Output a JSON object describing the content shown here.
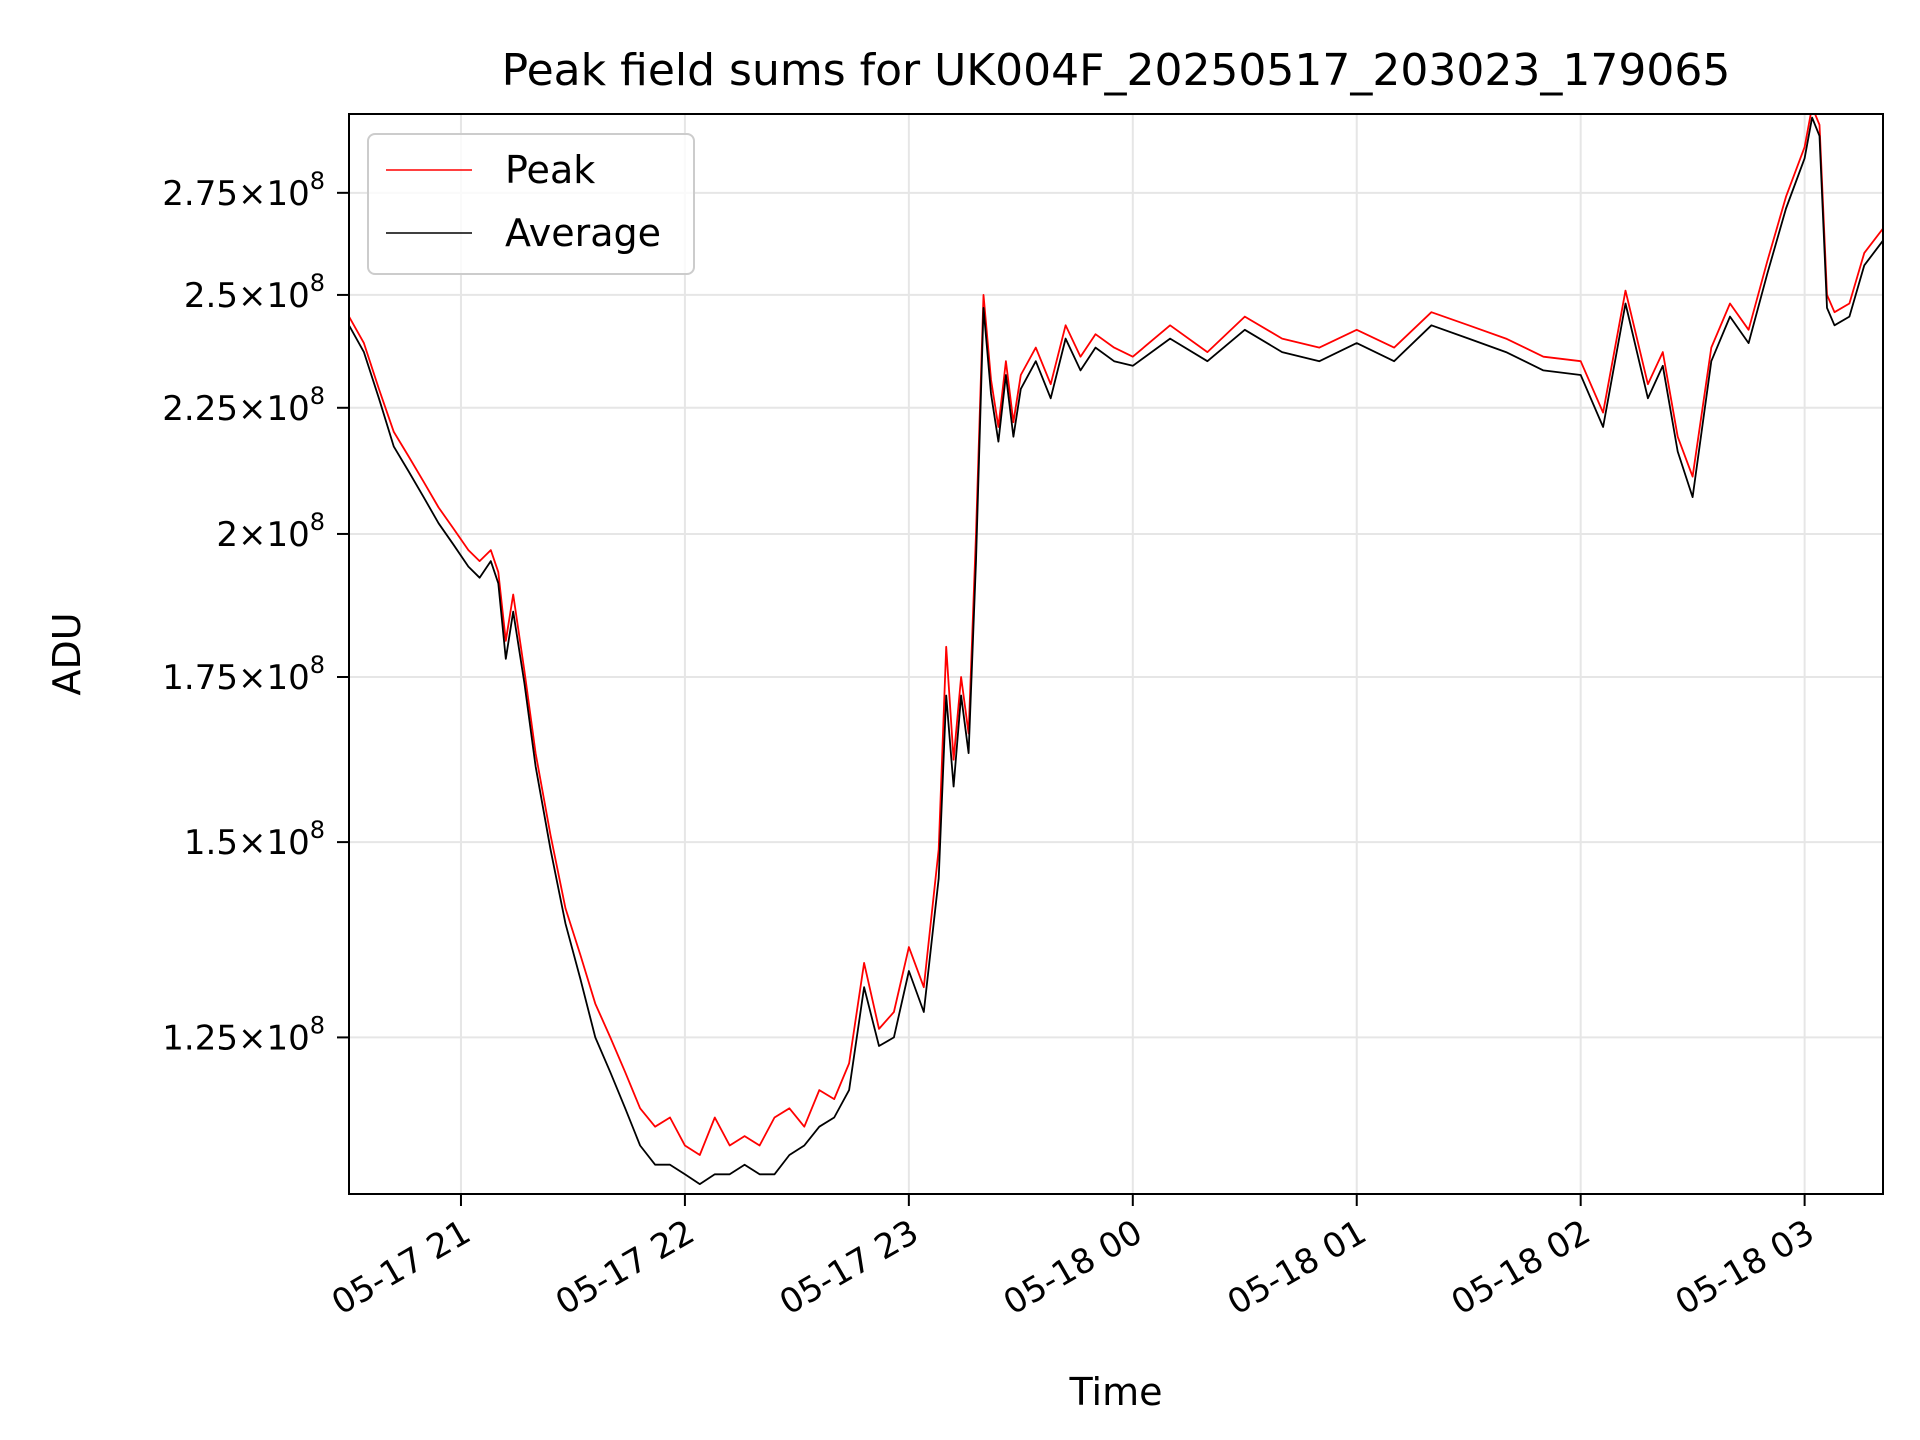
{
  "chart_data": {
    "type": "line",
    "title": "Peak field sums for UK004F_20250517_203023_179065",
    "xlabel": "Time",
    "ylabel": "ADU",
    "x_type": "datetime",
    "xlim": [
      "2025-05-17T20:30",
      "2025-05-18T03:21"
    ],
    "ylim": [
      108000000,
      296000000
    ],
    "y_scale": "log",
    "grid": true,
    "legend_position": "top-left",
    "x_ticks": [
      {
        "value": "2025-05-17T21:00",
        "label": "05-17 21"
      },
      {
        "value": "2025-05-17T22:00",
        "label": "05-17 22"
      },
      {
        "value": "2025-05-17T23:00",
        "label": "05-17 23"
      },
      {
        "value": "2025-05-18T00:00",
        "label": "05-18 00"
      },
      {
        "value": "2025-05-18T01:00",
        "label": "05-18 01"
      },
      {
        "value": "2025-05-18T02:00",
        "label": "05-18 02"
      },
      {
        "value": "2025-05-18T03:00",
        "label": "05-18 03"
      }
    ],
    "y_ticks": [
      {
        "value": 125000000,
        "mantissa": "1.25",
        "exponent": "8"
      },
      {
        "value": 150000000,
        "mantissa": "1.5",
        "exponent": "8"
      },
      {
        "value": 175000000,
        "mantissa": "1.75",
        "exponent": "8"
      },
      {
        "value": 200000000,
        "mantissa": "2",
        "exponent": "8"
      },
      {
        "value": 225000000,
        "mantissa": "2.25",
        "exponent": "8"
      },
      {
        "value": 250000000,
        "mantissa": "2.5",
        "exponent": "8"
      },
      {
        "value": 275000000,
        "mantissa": "2.75",
        "exponent": "8"
      }
    ],
    "series": [
      {
        "name": "Peak",
        "color": "#ff0000",
        "x": [
          "2025-05-17T20:30",
          "2025-05-17T20:34",
          "2025-05-17T20:38",
          "2025-05-17T20:42",
          "2025-05-17T20:46",
          "2025-05-17T20:50",
          "2025-05-17T20:54",
          "2025-05-17T20:58",
          "2025-05-17T21:02",
          "2025-05-17T21:05",
          "2025-05-17T21:08",
          "2025-05-17T21:10",
          "2025-05-17T21:12",
          "2025-05-17T21:14",
          "2025-05-17T21:17",
          "2025-05-17T21:20",
          "2025-05-17T21:24",
          "2025-05-17T21:28",
          "2025-05-17T21:32",
          "2025-05-17T21:36",
          "2025-05-17T21:40",
          "2025-05-17T21:44",
          "2025-05-17T21:48",
          "2025-05-17T21:52",
          "2025-05-17T21:56",
          "2025-05-17T22:00",
          "2025-05-17T22:04",
          "2025-05-17T22:08",
          "2025-05-17T22:12",
          "2025-05-17T22:16",
          "2025-05-17T22:20",
          "2025-05-17T22:24",
          "2025-05-17T22:28",
          "2025-05-17T22:32",
          "2025-05-17T22:36",
          "2025-05-17T22:40",
          "2025-05-17T22:44",
          "2025-05-17T22:48",
          "2025-05-17T22:52",
          "2025-05-17T22:56",
          "2025-05-17T23:00",
          "2025-05-17T23:04",
          "2025-05-17T23:08",
          "2025-05-17T23:10",
          "2025-05-17T23:12",
          "2025-05-17T23:14",
          "2025-05-17T23:16",
          "2025-05-17T23:18",
          "2025-05-17T23:20",
          "2025-05-17T23:22",
          "2025-05-17T23:24",
          "2025-05-17T23:26",
          "2025-05-17T23:28",
          "2025-05-17T23:30",
          "2025-05-17T23:34",
          "2025-05-17T23:38",
          "2025-05-17T23:42",
          "2025-05-17T23:46",
          "2025-05-17T23:50",
          "2025-05-17T23:55",
          "2025-05-18T00:00",
          "2025-05-18T00:10",
          "2025-05-18T00:20",
          "2025-05-18T00:30",
          "2025-05-18T00:40",
          "2025-05-18T00:50",
          "2025-05-18T01:00",
          "2025-05-18T01:10",
          "2025-05-18T01:20",
          "2025-05-18T01:30",
          "2025-05-18T01:40",
          "2025-05-18T01:50",
          "2025-05-18T02:00",
          "2025-05-18T02:06",
          "2025-05-18T02:12",
          "2025-05-18T02:18",
          "2025-05-18T02:22",
          "2025-05-18T02:26",
          "2025-05-18T02:30",
          "2025-05-18T02:35",
          "2025-05-18T02:40",
          "2025-05-18T02:45",
          "2025-05-18T02:50",
          "2025-05-18T02:55",
          "2025-05-18T03:00",
          "2025-05-18T03:02",
          "2025-05-18T03:04",
          "2025-05-18T03:06",
          "2025-05-18T03:08",
          "2025-05-18T03:12",
          "2025-05-18T03:16",
          "2025-05-18T03:21"
        ],
        "values": [
          245000000,
          239000000,
          229000000,
          220000000,
          215000000,
          210000000,
          205000000,
          201000000,
          197000000,
          195000000,
          197000000,
          193000000,
          181000000,
          189000000,
          176000000,
          163000000,
          151000000,
          141000000,
          135000000,
          129000000,
          125000000,
          121000000,
          117000000,
          115000000,
          116000000,
          113000000,
          112000000,
          116000000,
          113000000,
          114000000,
          113000000,
          116000000,
          117000000,
          115000000,
          119000000,
          118000000,
          122000000,
          134000000,
          126000000,
          128000000,
          136000000,
          131000000,
          149000000,
          180000000,
          162000000,
          175000000,
          166000000,
          200000000,
          250000000,
          231000000,
          221000000,
          235000000,
          222000000,
          232000000,
          238000000,
          230000000,
          243000000,
          236000000,
          241000000,
          238000000,
          236000000,
          243000000,
          237000000,
          245000000,
          240000000,
          238000000,
          242000000,
          238000000,
          246000000,
          243000000,
          240000000,
          236000000,
          235000000,
          224000000,
          251000000,
          230000000,
          237000000,
          219000000,
          211000000,
          238000000,
          248000000,
          242000000,
          258000000,
          274000000,
          287000000,
          298000000,
          293000000,
          250000000,
          246000000,
          248000000,
          260000000,
          266000000
        ]
      },
      {
        "name": "Average",
        "color": "#000000",
        "x": [
          "2025-05-17T20:30",
          "2025-05-17T20:34",
          "2025-05-17T20:38",
          "2025-05-17T20:42",
          "2025-05-17T20:46",
          "2025-05-17T20:50",
          "2025-05-17T20:54",
          "2025-05-17T20:58",
          "2025-05-17T21:02",
          "2025-05-17T21:05",
          "2025-05-17T21:08",
          "2025-05-17T21:10",
          "2025-05-17T21:12",
          "2025-05-17T21:14",
          "2025-05-17T21:17",
          "2025-05-17T21:20",
          "2025-05-17T21:24",
          "2025-05-17T21:28",
          "2025-05-17T21:32",
          "2025-05-17T21:36",
          "2025-05-17T21:40",
          "2025-05-17T21:44",
          "2025-05-17T21:48",
          "2025-05-17T21:52",
          "2025-05-17T21:56",
          "2025-05-17T22:00",
          "2025-05-17T22:04",
          "2025-05-17T22:08",
          "2025-05-17T22:12",
          "2025-05-17T22:16",
          "2025-05-17T22:20",
          "2025-05-17T22:24",
          "2025-05-17T22:28",
          "2025-05-17T22:32",
          "2025-05-17T22:36",
          "2025-05-17T22:40",
          "2025-05-17T22:44",
          "2025-05-17T22:48",
          "2025-05-17T22:52",
          "2025-05-17T22:56",
          "2025-05-17T23:00",
          "2025-05-17T23:04",
          "2025-05-17T23:08",
          "2025-05-17T23:10",
          "2025-05-17T23:12",
          "2025-05-17T23:14",
          "2025-05-17T23:16",
          "2025-05-17T23:18",
          "2025-05-17T23:20",
          "2025-05-17T23:22",
          "2025-05-17T23:24",
          "2025-05-17T23:26",
          "2025-05-17T23:28",
          "2025-05-17T23:30",
          "2025-05-17T23:34",
          "2025-05-17T23:38",
          "2025-05-17T23:42",
          "2025-05-17T23:46",
          "2025-05-17T23:50",
          "2025-05-17T23:55",
          "2025-05-18T00:00",
          "2025-05-18T00:10",
          "2025-05-18T00:20",
          "2025-05-18T00:30",
          "2025-05-18T00:40",
          "2025-05-18T00:50",
          "2025-05-18T01:00",
          "2025-05-18T01:10",
          "2025-05-18T01:20",
          "2025-05-18T01:30",
          "2025-05-18T01:40",
          "2025-05-18T01:50",
          "2025-05-18T02:00",
          "2025-05-18T02:06",
          "2025-05-18T02:12",
          "2025-05-18T02:18",
          "2025-05-18T02:22",
          "2025-05-18T02:26",
          "2025-05-18T02:30",
          "2025-05-18T02:35",
          "2025-05-18T02:40",
          "2025-05-18T02:45",
          "2025-05-18T02:50",
          "2025-05-18T02:55",
          "2025-05-18T03:00",
          "2025-05-18T03:02",
          "2025-05-18T03:04",
          "2025-05-18T03:06",
          "2025-05-18T03:08",
          "2025-05-18T03:12",
          "2025-05-18T03:16",
          "2025-05-18T03:21"
        ],
        "values": [
          243000000,
          237000000,
          227000000,
          217000000,
          212000000,
          207000000,
          202000000,
          198000000,
          194000000,
          192000000,
          195000000,
          191000000,
          178000000,
          186000000,
          174000000,
          161000000,
          149000000,
          139000000,
          132000000,
          125000000,
          121000000,
          117000000,
          113000000,
          111000000,
          111000000,
          110000000,
          109000000,
          110000000,
          110000000,
          111000000,
          110000000,
          110000000,
          112000000,
          113000000,
          115000000,
          116000000,
          119000000,
          131000000,
          124000000,
          125000000,
          133000000,
          128000000,
          145000000,
          172000000,
          158000000,
          172000000,
          163000000,
          195000000,
          247000000,
          228000000,
          218000000,
          232000000,
          219000000,
          229000000,
          235000000,
          227000000,
          240000000,
          233000000,
          238000000,
          235000000,
          234000000,
          240000000,
          235000000,
          242000000,
          237000000,
          235000000,
          239000000,
          235000000,
          243000000,
          240000000,
          237000000,
          233000000,
          232000000,
          221000000,
          248000000,
          227000000,
          234000000,
          216000000,
          207000000,
          235000000,
          245000000,
          239000000,
          255000000,
          271000000,
          284000000,
          295000000,
          290000000,
          247000000,
          243000000,
          245000000,
          257000000,
          263000000
        ]
      }
    ]
  }
}
